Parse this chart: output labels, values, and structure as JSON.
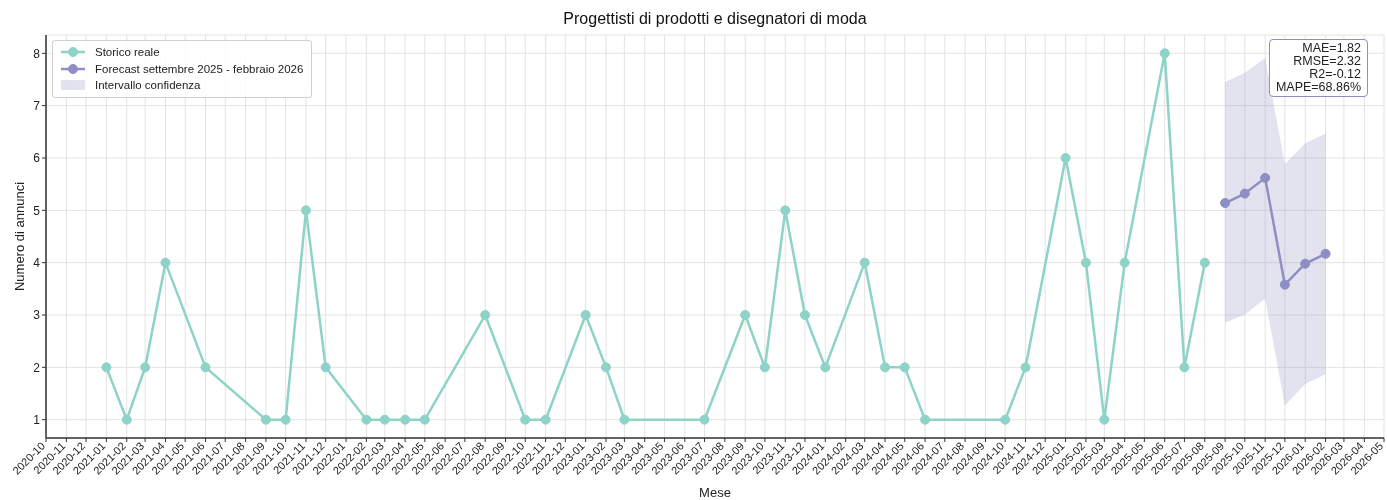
{
  "chart_data": {
    "type": "line",
    "title": "Progettisti di prodotti e disegnatori di moda",
    "xlabel": "Mese",
    "ylabel": "Numero di annunci",
    "series": [
      {
        "name": "Storico reale",
        "color": "#8dd3c7",
        "x": [
          "2021-01",
          "2021-02",
          "2021-03",
          "2021-04",
          "2021-06",
          "2021-09",
          "2021-10",
          "2021-11",
          "2021-12",
          "2022-02",
          "2022-03",
          "2022-04",
          "2022-05",
          "2022-08",
          "2022-10",
          "2022-11",
          "2023-01",
          "2023-02",
          "2023-03",
          "2023-07",
          "2023-09",
          "2023-10",
          "2023-11",
          "2023-12",
          "2024-01",
          "2024-03",
          "2024-04",
          "2024-05",
          "2024-06",
          "2024-10",
          "2024-11",
          "2025-01",
          "2025-02",
          "2025-03",
          "2025-04",
          "2025-06",
          "2025-07",
          "2025-08"
        ],
        "values": [
          2,
          1,
          2,
          4,
          2,
          1,
          1,
          5,
          2,
          1,
          1,
          1,
          1,
          3,
          1,
          1,
          3,
          2,
          1,
          1,
          3,
          2,
          5,
          3,
          2,
          4,
          2,
          2,
          1,
          1,
          2,
          6,
          4,
          1,
          4,
          8,
          2,
          4
        ]
      },
      {
        "name": "Forecast settembre 2025 - febbraio 2026",
        "color": "#8e8ec4",
        "x": [
          "2025-09",
          "2025-10",
          "2025-11",
          "2025-12",
          "2026-01",
          "2026-02"
        ],
        "values": [
          5.14,
          5.32,
          5.62,
          3.58,
          3.98,
          4.17
        ]
      },
      {
        "name": "Intervallo confidenza",
        "type": "area",
        "color": "#8e8ec4",
        "x": [
          "2025-09",
          "2025-10",
          "2025-11",
          "2025-12",
          "2026-01",
          "2026-02"
        ],
        "values": [
          null,
          null,
          null,
          null,
          null,
          null
        ],
        "lower": [
          2.85,
          3.01,
          3.31,
          1.27,
          1.68,
          1.87
        ],
        "upper": [
          7.45,
          7.63,
          7.91,
          5.88,
          6.28,
          6.47
        ]
      }
    ],
    "xlim": [
      "2020-10",
      "2026-05"
    ],
    "xticks": [
      "2020-10",
      "2020-11",
      "2020-12",
      "2021-01",
      "2021-02",
      "2021-03",
      "2021-04",
      "2021-05",
      "2021-06",
      "2021-07",
      "2021-08",
      "2021-09",
      "2021-10",
      "2021-11",
      "2021-12",
      "2022-01",
      "2022-02",
      "2022-03",
      "2022-04",
      "2022-05",
      "2022-06",
      "2022-07",
      "2022-08",
      "2022-09",
      "2022-10",
      "2022-11",
      "2022-12",
      "2023-01",
      "2023-02",
      "2023-03",
      "2023-04",
      "2023-05",
      "2023-06",
      "2023-07",
      "2023-08",
      "2023-09",
      "2023-10",
      "2023-11",
      "2023-12",
      "2024-01",
      "2024-02",
      "2024-03",
      "2024-04",
      "2024-05",
      "2024-06",
      "2024-07",
      "2024-08",
      "2024-09",
      "2024-10",
      "2024-11",
      "2024-12",
      "2025-01",
      "2025-02",
      "2025-03",
      "2025-04",
      "2025-05",
      "2025-06",
      "2025-07",
      "2025-08",
      "2025-09",
      "2025-10",
      "2025-11",
      "2025-12",
      "2026-01",
      "2026-02",
      "2026-03",
      "2026-04",
      "2026-05"
    ],
    "ylim": [
      0.65,
      8.35
    ],
    "yticks": [
      1,
      2,
      3,
      4,
      5,
      6,
      7,
      8
    ],
    "grid": true,
    "legend": "top left",
    "marker": "circle",
    "annotations": [
      "MAE=1.82",
      "RMSE=2.32",
      "R2=-0.12",
      "MAPE=68.86%"
    ]
  }
}
